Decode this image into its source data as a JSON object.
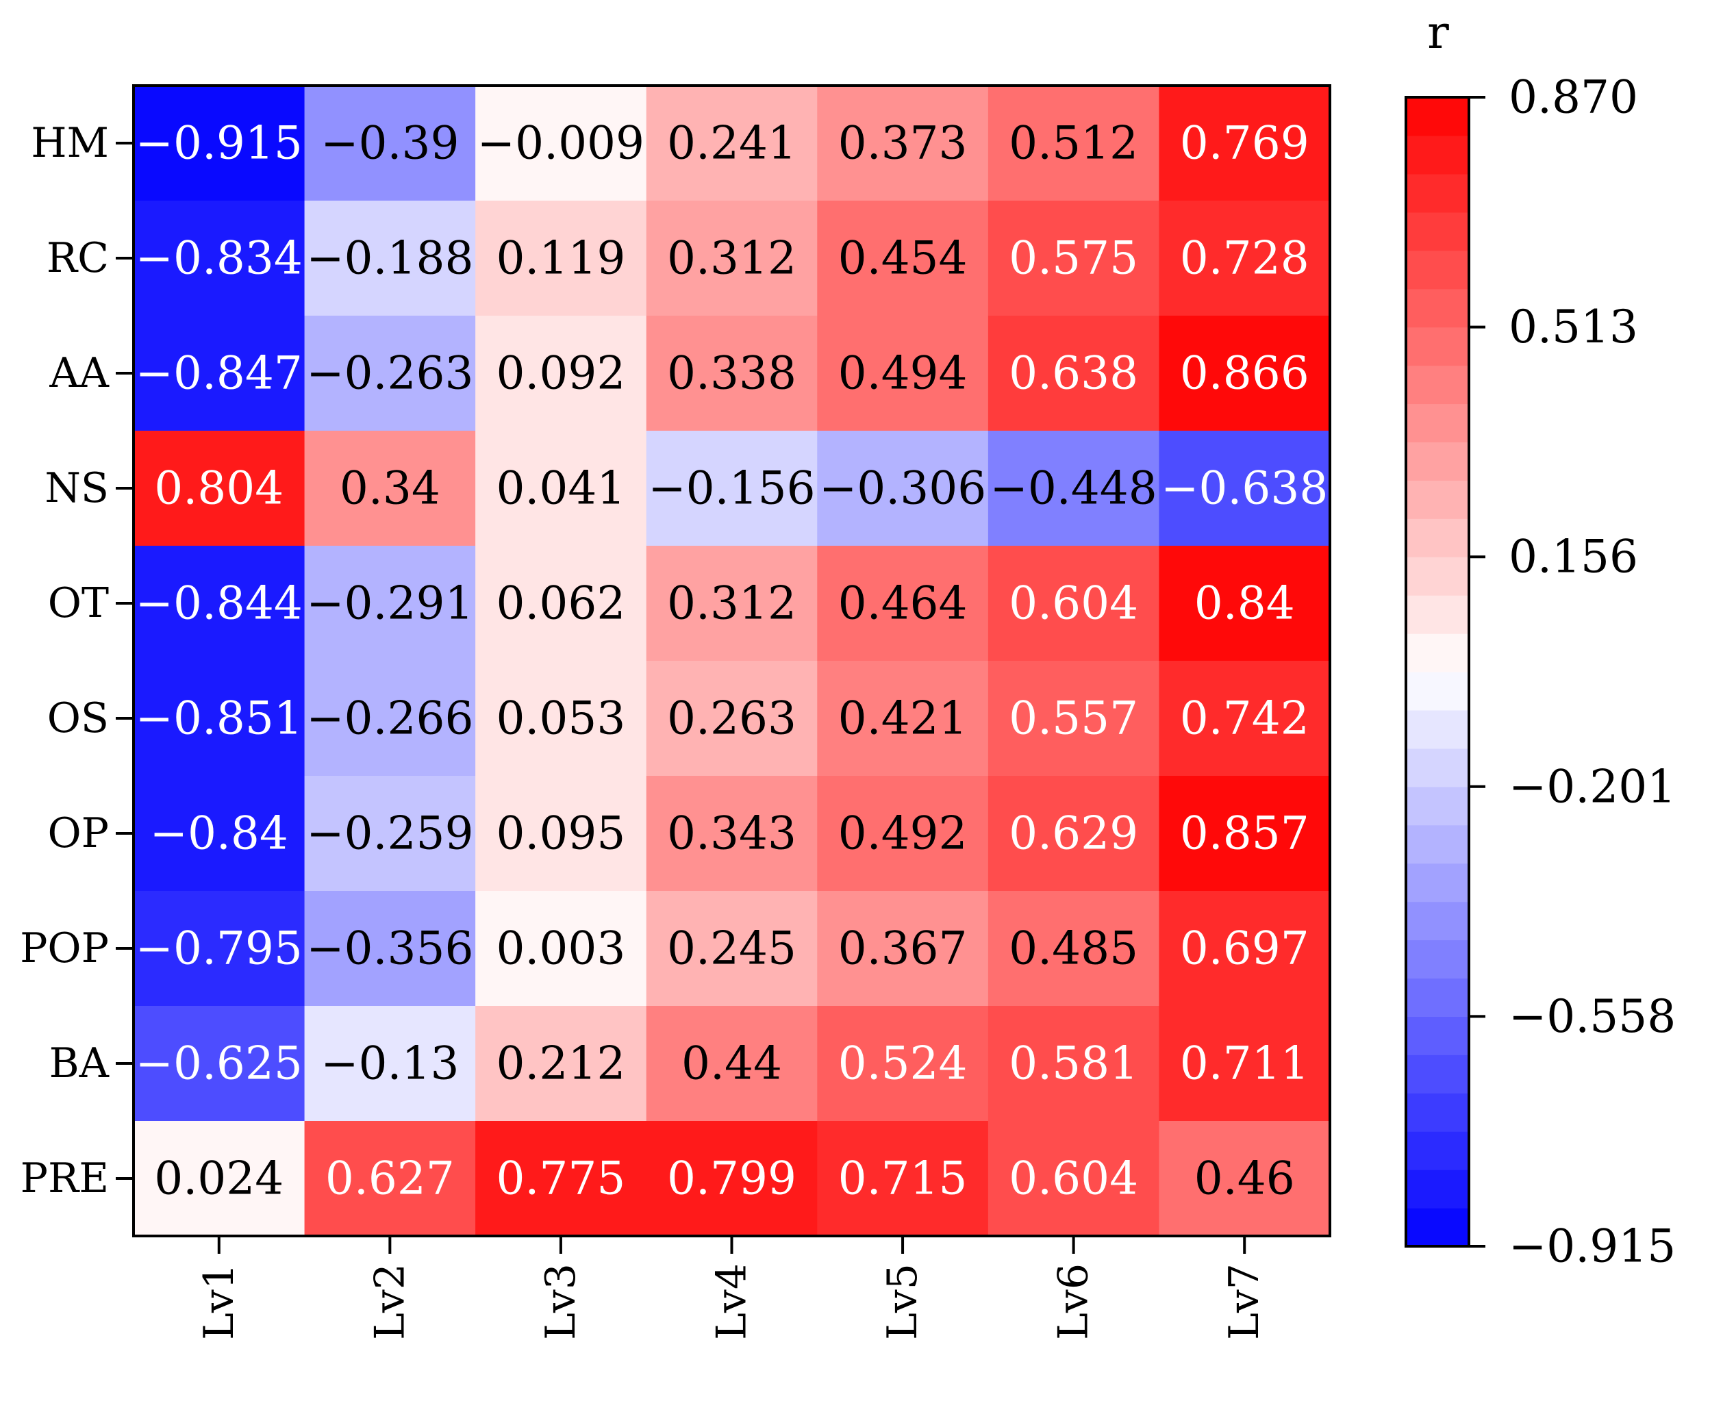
{
  "chart_data": {
    "type": "heatmap",
    "x_categories": [
      "Lv1",
      "Lv2",
      "Lv3",
      "Lv4",
      "Lv5",
      "Lv6",
      "Lv7"
    ],
    "y_categories": [
      "HM",
      "RC",
      "AA",
      "NS",
      "OT",
      "OS",
      "OP",
      "POP",
      "BA",
      "PRE"
    ],
    "value_labels": [
      [
        "-0.915",
        "-0.39",
        "-0.009",
        "0.241",
        "0.373",
        "0.512",
        "0.769"
      ],
      [
        "-0.834",
        "-0.188",
        "0.119",
        "0.312",
        "0.454",
        "0.575",
        "0.728"
      ],
      [
        "-0.847",
        "-0.263",
        "0.092",
        "0.338",
        "0.494",
        "0.638",
        "0.866"
      ],
      [
        "0.804",
        "0.34",
        "0.041",
        "-0.156",
        "-0.306",
        "-0.448",
        "-0.638"
      ],
      [
        "-0.844",
        "-0.291",
        "0.062",
        "0.312",
        "0.464",
        "0.604",
        "0.84"
      ],
      [
        "-0.851",
        "-0.266",
        "0.053",
        "0.263",
        "0.421",
        "0.557",
        "0.742"
      ],
      [
        "-0.84",
        "-0.259",
        "0.095",
        "0.343",
        "0.492",
        "0.629",
        "0.857"
      ],
      [
        "-0.795",
        "-0.356",
        "0.003",
        "0.245",
        "0.367",
        "0.485",
        "0.697"
      ],
      [
        "-0.625",
        "-0.13",
        "0.212",
        "0.44",
        "0.524",
        "0.581",
        "0.711"
      ],
      [
        "0.024",
        "0.627",
        "0.775",
        "0.799",
        "0.715",
        "0.604",
        "0.46"
      ]
    ],
    "colorbar": {
      "label": "r",
      "range": [
        -0.915,
        0.87
      ],
      "ticks": [
        0.87,
        0.513,
        0.156,
        -0.201,
        -0.558,
        -0.915
      ],
      "tick_labels": [
        "0.870",
        "0.513",
        "0.156",
        "−0.201",
        "−0.558",
        "−0.915"
      ],
      "levels": 30,
      "colors": {
        "low": "#0000ff",
        "mid": "#ffffff",
        "high": "#ff0000"
      }
    },
    "text_color_rule": "white on saturated cells, black otherwise",
    "grid": false
  }
}
